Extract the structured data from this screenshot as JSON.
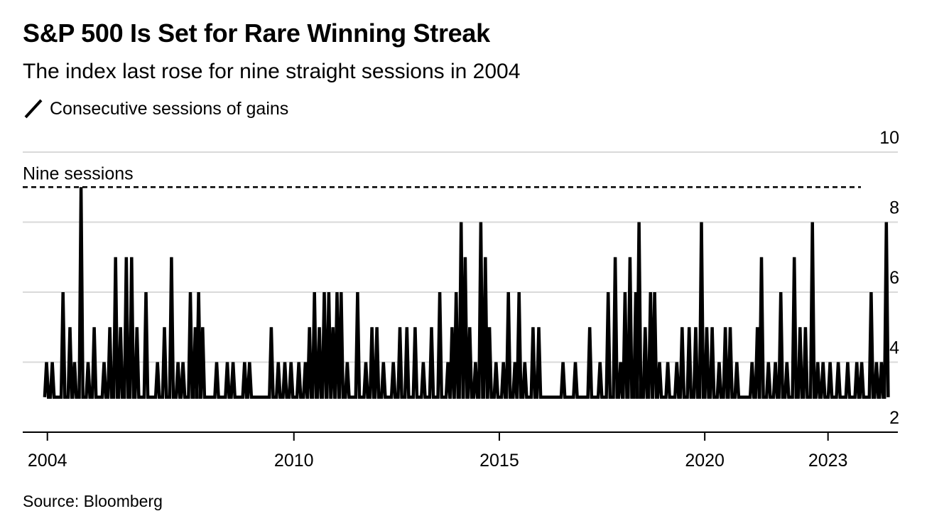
{
  "title": "S&P 500 Is Set for Rare Winning Streak",
  "subtitle": "The index last rose for nine straight sessions in 2004",
  "legend": {
    "label": "Consecutive sessions of gains"
  },
  "source": "Source: Bloomberg",
  "colors": {
    "line": "#000000",
    "grid": "#d9d9d9",
    "axis": "#000000"
  },
  "chart_data": {
    "type": "line",
    "title": "S&P 500 Is Set for Rare Winning Streak",
    "subtitle": "The index last rose for nine straight sessions in 2004",
    "xlabel": "",
    "ylabel": "",
    "ylim": [
      2,
      10
    ],
    "xlim": [
      2003.4,
      2024.7
    ],
    "y_axis_side": "right",
    "y_ticks": [
      2,
      4,
      6,
      8,
      10
    ],
    "x_ticks": [
      {
        "value": 2004,
        "label": "2004"
      },
      {
        "value": 2010,
        "label": "2010"
      },
      {
        "value": 2015,
        "label": "2015"
      },
      {
        "value": 2020,
        "label": "2020"
      },
      {
        "value": 2023,
        "label": "2023"
      }
    ],
    "grid": true,
    "legend_position": "top-left",
    "annotations": [
      {
        "type": "reference-line",
        "y": 9,
        "label": "Nine sessions",
        "style": "dashed"
      }
    ],
    "baseline": 3,
    "series": [
      {
        "name": "Consecutive sessions of gains",
        "points": [
          [
            2003.98,
            4
          ],
          [
            2004.12,
            4
          ],
          [
            2004.38,
            6
          ],
          [
            2004.55,
            5
          ],
          [
            2004.66,
            4
          ],
          [
            2004.82,
            9
          ],
          [
            2004.99,
            4
          ],
          [
            2005.14,
            5
          ],
          [
            2005.38,
            4
          ],
          [
            2005.52,
            5
          ],
          [
            2005.66,
            7
          ],
          [
            2005.78,
            5
          ],
          [
            2005.92,
            7
          ],
          [
            2006.05,
            7
          ],
          [
            2006.18,
            5
          ],
          [
            2006.4,
            6
          ],
          [
            2006.68,
            4
          ],
          [
            2006.85,
            5
          ],
          [
            2007.02,
            7
          ],
          [
            2007.18,
            4
          ],
          [
            2007.3,
            4
          ],
          [
            2007.48,
            6
          ],
          [
            2007.6,
            5
          ],
          [
            2007.68,
            6
          ],
          [
            2007.78,
            5
          ],
          [
            2008.12,
            4
          ],
          [
            2008.38,
            4
          ],
          [
            2008.52,
            4
          ],
          [
            2008.8,
            4
          ],
          [
            2008.92,
            4
          ],
          [
            2009.45,
            5
          ],
          [
            2009.62,
            4
          ],
          [
            2009.78,
            4
          ],
          [
            2009.93,
            4
          ],
          [
            2010.12,
            4
          ],
          [
            2010.28,
            4
          ],
          [
            2010.38,
            5
          ],
          [
            2010.5,
            6
          ],
          [
            2010.62,
            5
          ],
          [
            2010.74,
            6
          ],
          [
            2010.85,
            6
          ],
          [
            2010.95,
            5
          ],
          [
            2011.05,
            6
          ],
          [
            2011.15,
            6
          ],
          [
            2011.3,
            4
          ],
          [
            2011.55,
            6
          ],
          [
            2011.75,
            4
          ],
          [
            2011.9,
            5
          ],
          [
            2012.02,
            5
          ],
          [
            2012.18,
            4
          ],
          [
            2012.42,
            4
          ],
          [
            2012.58,
            5
          ],
          [
            2012.75,
            5
          ],
          [
            2012.95,
            5
          ],
          [
            2013.15,
            4
          ],
          [
            2013.35,
            5
          ],
          [
            2013.55,
            6
          ],
          [
            2013.75,
            4
          ],
          [
            2013.85,
            5
          ],
          [
            2013.95,
            6
          ],
          [
            2014.07,
            8
          ],
          [
            2014.17,
            7
          ],
          [
            2014.28,
            5
          ],
          [
            2014.42,
            4
          ],
          [
            2014.55,
            8
          ],
          [
            2014.66,
            7
          ],
          [
            2014.76,
            5
          ],
          [
            2014.92,
            4
          ],
          [
            2015.1,
            4
          ],
          [
            2015.22,
            6
          ],
          [
            2015.38,
            4
          ],
          [
            2015.48,
            6
          ],
          [
            2015.62,
            4
          ],
          [
            2015.82,
            5
          ],
          [
            2015.96,
            5
          ],
          [
            2016.55,
            4
          ],
          [
            2016.85,
            4
          ],
          [
            2017.2,
            5
          ],
          [
            2017.45,
            4
          ],
          [
            2017.65,
            6
          ],
          [
            2017.82,
            7
          ],
          [
            2017.95,
            4
          ],
          [
            2018.06,
            6
          ],
          [
            2018.18,
            7
          ],
          [
            2018.32,
            6
          ],
          [
            2018.4,
            8
          ],
          [
            2018.55,
            5
          ],
          [
            2018.68,
            6
          ],
          [
            2018.78,
            6
          ],
          [
            2018.9,
            4
          ],
          [
            2019.1,
            4
          ],
          [
            2019.32,
            4
          ],
          [
            2019.45,
            5
          ],
          [
            2019.62,
            5
          ],
          [
            2019.78,
            5
          ],
          [
            2019.92,
            8
          ],
          [
            2020.05,
            5
          ],
          [
            2020.18,
            5
          ],
          [
            2020.35,
            4
          ],
          [
            2020.5,
            5
          ],
          [
            2020.62,
            5
          ],
          [
            2020.78,
            4
          ],
          [
            2021.15,
            4
          ],
          [
            2021.28,
            5
          ],
          [
            2021.38,
            7
          ],
          [
            2021.55,
            4
          ],
          [
            2021.72,
            4
          ],
          [
            2021.85,
            6
          ],
          [
            2022.0,
            4
          ],
          [
            2022.18,
            7
          ],
          [
            2022.32,
            5
          ],
          [
            2022.45,
            5
          ],
          [
            2022.62,
            8
          ],
          [
            2022.75,
            4
          ],
          [
            2022.88,
            4
          ],
          [
            2023.05,
            4
          ],
          [
            2023.25,
            4
          ],
          [
            2023.48,
            4
          ],
          [
            2023.7,
            4
          ],
          [
            2023.82,
            4
          ],
          [
            2024.05,
            6
          ],
          [
            2024.18,
            4
          ],
          [
            2024.3,
            4
          ],
          [
            2024.42,
            8
          ]
        ]
      }
    ]
  }
}
